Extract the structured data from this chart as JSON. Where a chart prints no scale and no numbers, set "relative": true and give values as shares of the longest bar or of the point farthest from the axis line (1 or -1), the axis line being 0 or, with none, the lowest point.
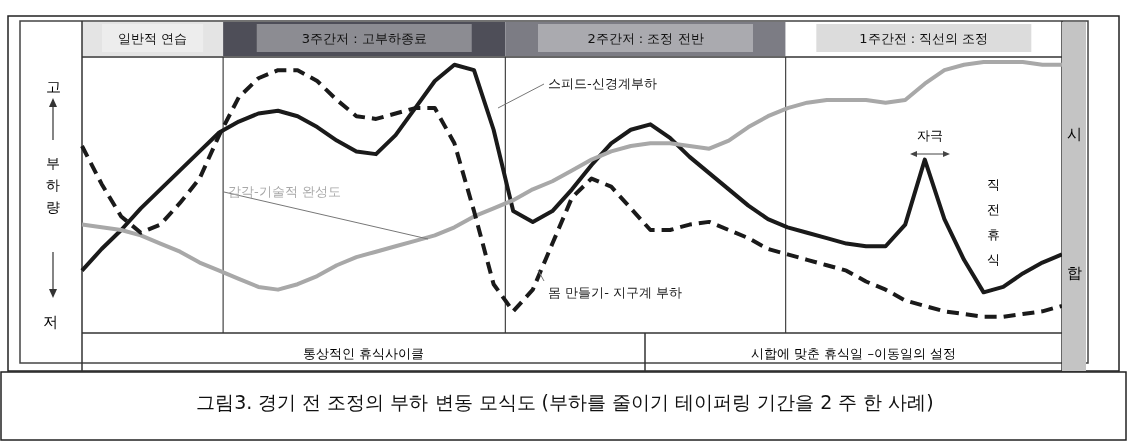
{
  "chart_data": {
    "type": "line",
    "relative": true,
    "title": "그림3. 경기 전 조정의 부하 변동 모식도 (부하를 줄이기 테이퍼링 기간을 2 주 한 사례)",
    "ylabel": "부하량",
    "categories": [
      null,
      null,
      null,
      null,
      null,
      null,
      null,
      null,
      null,
      null,
      null,
      null,
      null,
      null,
      null,
      null,
      null,
      null,
      null,
      null,
      null,
      null,
      null,
      null,
      null,
      null,
      null,
      null,
      null,
      null,
      null,
      null,
      null,
      null,
      null,
      null,
      null,
      null,
      null,
      null,
      null,
      null,
      null,
      null,
      null,
      null,
      null,
      null,
      null,
      null,
      null
    ],
    "series": [
      {
        "name": "스피드-신경계부하",
        "color": "#1a1a1a",
        "values": [
          0.23,
          0.31,
          0.38,
          0.46,
          0.53,
          0.6,
          0.67,
          0.74,
          0.78,
          0.81,
          0.82,
          0.8,
          0.76,
          0.71,
          0.67,
          0.66,
          0.73,
          0.83,
          0.93,
          0.99,
          0.97,
          0.75,
          0.45,
          0.41,
          0.45,
          0.53,
          0.62,
          0.7,
          0.75,
          0.77,
          0.72,
          0.65,
          0.59,
          0.53,
          0.47,
          0.42,
          0.39,
          0.37,
          0.35,
          0.33,
          0.32,
          0.32,
          0.4,
          0.64,
          0.42,
          0.27,
          0.15,
          0.17,
          0.22,
          0.26,
          0.29
        ]
      },
      {
        "name": "감각-기술적 완성도",
        "color": "#a8a8a8",
        "values": [
          0.4,
          0.39,
          0.38,
          0.36,
          0.33,
          0.3,
          0.26,
          0.23,
          0.2,
          0.17,
          0.16,
          0.18,
          0.21,
          0.25,
          0.28,
          0.3,
          0.32,
          0.34,
          0.36,
          0.39,
          0.43,
          0.46,
          0.49,
          0.53,
          0.56,
          0.6,
          0.64,
          0.67,
          0.69,
          0.7,
          0.7,
          0.69,
          0.68,
          0.71,
          0.76,
          0.8,
          0.83,
          0.85,
          0.86,
          0.86,
          0.86,
          0.85,
          0.86,
          0.92,
          0.97,
          0.99,
          1,
          1,
          1,
          0.99,
          0.99
        ]
      },
      {
        "name": "몸 만들기- 지구계 부하",
        "color": "#1a1a1a",
        "line_style": "dashed",
        "values": [
          0.69,
          0.55,
          0.43,
          0.37,
          0.4,
          0.48,
          0.57,
          0.73,
          0.87,
          0.94,
          0.97,
          0.97,
          0.93,
          0.86,
          0.8,
          0.79,
          0.81,
          0.83,
          0.83,
          0.7,
          0.45,
          0.18,
          0.08,
          0.16,
          0.33,
          0.5,
          0.57,
          0.54,
          0.46,
          0.38,
          0.38,
          0.4,
          0.41,
          0.38,
          0.35,
          0.31,
          0.29,
          0.27,
          0.25,
          0.23,
          0.19,
          0.16,
          0.12,
          0.1,
          0.08,
          0.07,
          0.06,
          0.06,
          0.07,
          0.08,
          0.1
        ]
      }
    ],
    "annotations": [
      "일반적 연습",
      "3주간저 : 고부하종료",
      "2주간저 : 조정 전반",
      "1주간전 : 직선의 조정",
      "고",
      "저",
      "통상적인 휴식사이클",
      "시합에 맞춘 휴식일 –이동일의 설정",
      "시합",
      "자극",
      "직전휴식"
    ]
  }
}
